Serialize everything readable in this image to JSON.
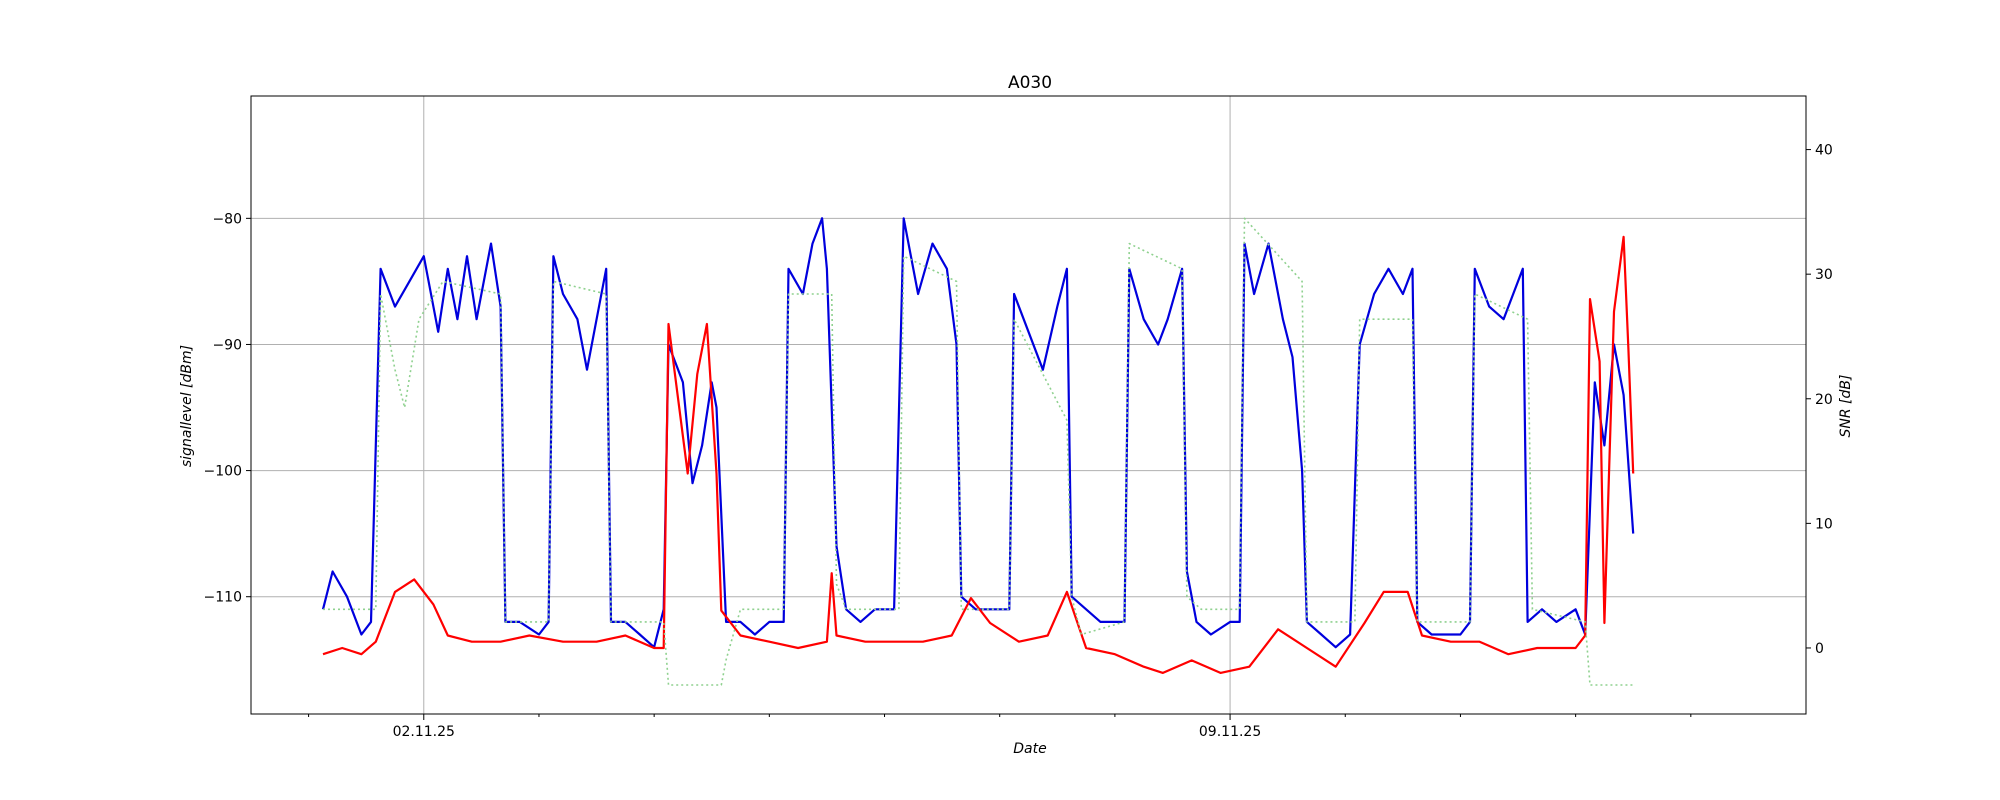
{
  "chart_data": {
    "type": "line",
    "title": "A030",
    "xlabel": "Date",
    "ylabel_left": "signallevel [dBm]",
    "ylabel_right": "SNR [dB]",
    "x_range": [
      "2025-10-31 12:00",
      "2025-11-14 00:00"
    ],
    "ylim_left": [
      -119.3,
      -70.3
    ],
    "ylim_right": [
      -5.3,
      44.3
    ],
    "left_ticks": [
      -80,
      -90,
      -100,
      -110
    ],
    "left_tick_labels": [
      "−80",
      "−90",
      "−100",
      "−110"
    ],
    "right_ticks": [
      40,
      30,
      20,
      10,
      0
    ],
    "right_tick_labels": [
      "40",
      "30",
      "20",
      "10",
      "0"
    ],
    "x_major_ticks": [
      "2025-11-02",
      "2025-11-09"
    ],
    "x_major_tick_labels": [
      "02.11.25",
      "09.11.25"
    ],
    "x_minor_tick_days": [
      "2025-11-01",
      "2025-11-03",
      "2025-11-04",
      "2025-11-05",
      "2025-11-06",
      "2025-11-07",
      "2025-11-08",
      "2025-11-10",
      "2025-11-11",
      "2025-11-12",
      "2025-11-13"
    ],
    "grid": true,
    "series": [
      {
        "axis": "left",
        "color": "#0000dd",
        "style": "solid",
        "points": [
          [
            "2025-11-01 03:00",
            -111
          ],
          [
            "2025-11-01 05:00",
            -108
          ],
          [
            "2025-11-01 08:00",
            -110
          ],
          [
            "2025-11-01 11:00",
            -113
          ],
          [
            "2025-11-01 13:00",
            -112
          ],
          [
            "2025-11-01 15:00",
            -84
          ],
          [
            "2025-11-01 18:00",
            -87
          ],
          [
            "2025-11-01 21:00",
            -85
          ],
          [
            "2025-11-02 00:00",
            -83
          ],
          [
            "2025-11-02 03:00",
            -89
          ],
          [
            "2025-11-02 05:00",
            -84
          ],
          [
            "2025-11-02 07:00",
            -88
          ],
          [
            "2025-11-02 09:00",
            -83
          ],
          [
            "2025-11-02 11:00",
            -88
          ],
          [
            "2025-11-02 14:00",
            -82
          ],
          [
            "2025-11-02 16:00",
            -87
          ],
          [
            "2025-11-02 17:00",
            -112
          ],
          [
            "2025-11-02 20:00",
            -112
          ],
          [
            "2025-11-03 00:00",
            -113
          ],
          [
            "2025-11-03 02:00",
            -112
          ],
          [
            "2025-11-03 03:00",
            -83
          ],
          [
            "2025-11-03 05:00",
            -86
          ],
          [
            "2025-11-03 08:00",
            -88
          ],
          [
            "2025-11-03 10:00",
            -92
          ],
          [
            "2025-11-03 12:00",
            -88
          ],
          [
            "2025-11-03 14:00",
            -84
          ],
          [
            "2025-11-03 15:00",
            -112
          ],
          [
            "2025-11-03 18:00",
            -112
          ],
          [
            "2025-11-03 21:00",
            -113
          ],
          [
            "2025-11-04 00:00",
            -114
          ],
          [
            "2025-11-04 02:00",
            -111
          ],
          [
            "2025-11-04 03:00",
            -90
          ],
          [
            "2025-11-04 06:00",
            -93
          ],
          [
            "2025-11-04 08:00",
            -101
          ],
          [
            "2025-11-04 10:00",
            -98
          ],
          [
            "2025-11-04 12:00",
            -93
          ],
          [
            "2025-11-04 13:00",
            -95
          ],
          [
            "2025-11-04 15:00",
            -112
          ],
          [
            "2025-11-04 18:00",
            -112
          ],
          [
            "2025-11-04 21:00",
            -113
          ],
          [
            "2025-11-05 00:00",
            -112
          ],
          [
            "2025-11-05 03:00",
            -112
          ],
          [
            "2025-11-05 04:00",
            -84
          ],
          [
            "2025-11-05 07:00",
            -86
          ],
          [
            "2025-11-05 09:00",
            -82
          ],
          [
            "2025-11-05 11:00",
            -80
          ],
          [
            "2025-11-05 12:00",
            -84
          ],
          [
            "2025-11-05 14:00",
            -106
          ],
          [
            "2025-11-05 16:00",
            -111
          ],
          [
            "2025-11-05 19:00",
            -112
          ],
          [
            "2025-11-05 22:00",
            -111
          ],
          [
            "2025-11-06 02:00",
            -111
          ],
          [
            "2025-11-06 04:00",
            -80
          ],
          [
            "2025-11-06 07:00",
            -86
          ],
          [
            "2025-11-06 10:00",
            -82
          ],
          [
            "2025-11-06 13:00",
            -84
          ],
          [
            "2025-11-06 15:00",
            -90
          ],
          [
            "2025-11-06 16:00",
            -110
          ],
          [
            "2025-11-06 19:00",
            -111
          ],
          [
            "2025-11-06 22:00",
            -111
          ],
          [
            "2025-11-07 02:00",
            -111
          ],
          [
            "2025-11-07 03:00",
            -86
          ],
          [
            "2025-11-07 06:00",
            -89
          ],
          [
            "2025-11-07 09:00",
            -92
          ],
          [
            "2025-11-07 12:00",
            -87
          ],
          [
            "2025-11-07 14:00",
            -84
          ],
          [
            "2025-11-07 15:00",
            -110
          ],
          [
            "2025-11-07 18:00",
            -111
          ],
          [
            "2025-11-07 21:00",
            -112
          ],
          [
            "2025-11-08 02:00",
            -112
          ],
          [
            "2025-11-08 03:00",
            -84
          ],
          [
            "2025-11-08 06:00",
            -88
          ],
          [
            "2025-11-08 09:00",
            -90
          ],
          [
            "2025-11-08 11:00",
            -88
          ],
          [
            "2025-11-08 14:00",
            -84
          ],
          [
            "2025-11-08 15:00",
            -108
          ],
          [
            "2025-11-08 17:00",
            -112
          ],
          [
            "2025-11-08 20:00",
            -113
          ],
          [
            "2025-11-09 00:00",
            -112
          ],
          [
            "2025-11-09 02:00",
            -112
          ],
          [
            "2025-11-09 03:00",
            -82
          ],
          [
            "2025-11-09 05:00",
            -86
          ],
          [
            "2025-11-09 08:00",
            -82
          ],
          [
            "2025-11-09 11:00",
            -88
          ],
          [
            "2025-11-09 13:00",
            -91
          ],
          [
            "2025-11-09 15:00",
            -100
          ],
          [
            "2025-11-09 16:00",
            -112
          ],
          [
            "2025-11-09 19:00",
            -113
          ],
          [
            "2025-11-09 22:00",
            -114
          ],
          [
            "2025-11-10 01:00",
            -113
          ],
          [
            "2025-11-10 03:00",
            -90
          ],
          [
            "2025-11-10 06:00",
            -86
          ],
          [
            "2025-11-10 09:00",
            -84
          ],
          [
            "2025-11-10 12:00",
            -86
          ],
          [
            "2025-11-10 14:00",
            -84
          ],
          [
            "2025-11-10 15:00",
            -112
          ],
          [
            "2025-11-10 18:00",
            -113
          ],
          [
            "2025-11-10 21:00",
            -113
          ],
          [
            "2025-11-11 00:00",
            -113
          ],
          [
            "2025-11-11 02:00",
            -112
          ],
          [
            "2025-11-11 03:00",
            -84
          ],
          [
            "2025-11-11 06:00",
            -87
          ],
          [
            "2025-11-11 09:00",
            -88
          ],
          [
            "2025-11-11 11:00",
            -86
          ],
          [
            "2025-11-11 13:00",
            -84
          ],
          [
            "2025-11-11 14:00",
            -112
          ],
          [
            "2025-11-11 17:00",
            -111
          ],
          [
            "2025-11-11 20:00",
            -112
          ],
          [
            "2025-11-12 00:00",
            -111
          ],
          [
            "2025-11-12 02:00",
            -113
          ],
          [
            "2025-11-12 04:00",
            -93
          ],
          [
            "2025-11-12 06:00",
            -98
          ],
          [
            "2025-11-12 08:00",
            -90
          ],
          [
            "2025-11-12 10:00",
            -94
          ],
          [
            "2025-11-12 12:00",
            -105
          ]
        ]
      },
      {
        "axis": "right",
        "color": "#ff0000",
        "style": "solid",
        "points": [
          [
            "2025-11-01 03:00",
            -0.5
          ],
          [
            "2025-11-01 07:00",
            0
          ],
          [
            "2025-11-01 11:00",
            -0.5
          ],
          [
            "2025-11-01 14:00",
            0.5
          ],
          [
            "2025-11-01 18:00",
            4.5
          ],
          [
            "2025-11-01 22:00",
            5.5
          ],
          [
            "2025-11-02 02:00",
            3.5
          ],
          [
            "2025-11-02 05:00",
            1
          ],
          [
            "2025-11-02 10:00",
            0.5
          ],
          [
            "2025-11-02 16:00",
            0.5
          ],
          [
            "2025-11-02 22:00",
            1
          ],
          [
            "2025-11-03 05:00",
            0.5
          ],
          [
            "2025-11-03 12:00",
            0.5
          ],
          [
            "2025-11-03 18:00",
            1
          ],
          [
            "2025-11-04 00:00",
            0
          ],
          [
            "2025-11-04 02:00",
            0
          ],
          [
            "2025-11-04 03:00",
            26
          ],
          [
            "2025-11-04 05:00",
            20
          ],
          [
            "2025-11-04 07:00",
            14
          ],
          [
            "2025-11-04 09:00",
            22
          ],
          [
            "2025-11-04 11:00",
            26
          ],
          [
            "2025-11-04 13:00",
            14
          ],
          [
            "2025-11-04 14:00",
            3
          ],
          [
            "2025-11-04 18:00",
            1
          ],
          [
            "2025-11-05 00:00",
            0.5
          ],
          [
            "2025-11-05 06:00",
            0
          ],
          [
            "2025-11-05 12:00",
            0.5
          ],
          [
            "2025-11-05 13:00",
            6
          ],
          [
            "2025-11-05 14:00",
            1
          ],
          [
            "2025-11-05 20:00",
            0.5
          ],
          [
            "2025-11-06 02:00",
            0.5
          ],
          [
            "2025-11-06 08:00",
            0.5
          ],
          [
            "2025-11-06 14:00",
            1
          ],
          [
            "2025-11-06 18:00",
            4
          ],
          [
            "2025-11-06 22:00",
            2
          ],
          [
            "2025-11-07 04:00",
            0.5
          ],
          [
            "2025-11-07 10:00",
            1
          ],
          [
            "2025-11-07 14:00",
            4.5
          ],
          [
            "2025-11-07 18:00",
            0
          ],
          [
            "2025-11-08 00:00",
            -0.5
          ],
          [
            "2025-11-08 06:00",
            -1.5
          ],
          [
            "2025-11-08 10:00",
            -2
          ],
          [
            "2025-11-08 16:00",
            -1
          ],
          [
            "2025-11-08 22:00",
            -2
          ],
          [
            "2025-11-09 04:00",
            -1.5
          ],
          [
            "2025-11-09 10:00",
            1.5
          ],
          [
            "2025-11-09 16:00",
            0
          ],
          [
            "2025-11-09 22:00",
            -1.5
          ],
          [
            "2025-11-10 04:00",
            2
          ],
          [
            "2025-11-10 08:00",
            4.5
          ],
          [
            "2025-11-10 13:00",
            4.5
          ],
          [
            "2025-11-10 16:00",
            1
          ],
          [
            "2025-11-10 22:00",
            0.5
          ],
          [
            "2025-11-11 04:00",
            0.5
          ],
          [
            "2025-11-11 10:00",
            -0.5
          ],
          [
            "2025-11-11 16:00",
            0
          ],
          [
            "2025-11-12 00:00",
            0
          ],
          [
            "2025-11-12 02:00",
            1
          ],
          [
            "2025-11-12 03:00",
            28
          ],
          [
            "2025-11-12 05:00",
            23
          ],
          [
            "2025-11-12 06:00",
            2
          ],
          [
            "2025-11-12 08:00",
            27
          ],
          [
            "2025-11-12 10:00",
            33
          ],
          [
            "2025-11-12 11:00",
            24
          ],
          [
            "2025-11-12 12:00",
            14
          ]
        ]
      },
      {
        "axis": "left",
        "color": "#8fd18f",
        "style": "dotted",
        "points": [
          [
            "2025-11-01 03:00",
            -111
          ],
          [
            "2025-11-01 14:00",
            -111
          ],
          [
            "2025-11-01 15:00",
            -86
          ],
          [
            "2025-11-01 18:00",
            -92
          ],
          [
            "2025-11-01 20:00",
            -95
          ],
          [
            "2025-11-01 23:00",
            -88
          ],
          [
            "2025-11-02 04:00",
            -85
          ],
          [
            "2025-11-02 16:00",
            -86
          ],
          [
            "2025-11-02 17:00",
            -112
          ],
          [
            "2025-11-03 02:00",
            -112
          ],
          [
            "2025-11-03 03:00",
            -85
          ],
          [
            "2025-11-03 14:00",
            -86
          ],
          [
            "2025-11-03 15:00",
            -112
          ],
          [
            "2025-11-04 02:00",
            -112
          ],
          [
            "2025-11-04 03:00",
            -117
          ],
          [
            "2025-11-04 14:00",
            -117
          ],
          [
            "2025-11-04 15:00",
            -115
          ],
          [
            "2025-11-04 18:00",
            -111
          ],
          [
            "2025-11-05 03:00",
            -111
          ],
          [
            "2025-11-05 04:00",
            -86
          ],
          [
            "2025-11-05 13:00",
            -86
          ],
          [
            "2025-11-05 14:00",
            -109
          ],
          [
            "2025-11-05 16:00",
            -111
          ],
          [
            "2025-11-06 03:00",
            -111
          ],
          [
            "2025-11-06 04:00",
            -83
          ],
          [
            "2025-11-06 15:00",
            -85
          ],
          [
            "2025-11-06 16:00",
            -111
          ],
          [
            "2025-11-07 02:00",
            -111
          ],
          [
            "2025-11-07 03:00",
            -88
          ],
          [
            "2025-11-07 14:00",
            -96
          ],
          [
            "2025-11-07 15:00",
            -110
          ],
          [
            "2025-11-07 17:00",
            -113
          ],
          [
            "2025-11-08 02:00",
            -112
          ],
          [
            "2025-11-08 03:00",
            -82
          ],
          [
            "2025-11-08 14:00",
            -84
          ],
          [
            "2025-11-08 15:00",
            -110
          ],
          [
            "2025-11-08 18:00",
            -111
          ],
          [
            "2025-11-09 02:00",
            -111
          ],
          [
            "2025-11-09 03:00",
            -80
          ],
          [
            "2025-11-09 15:00",
            -85
          ],
          [
            "2025-11-09 16:00",
            -112
          ],
          [
            "2025-11-10 02:00",
            -112
          ],
          [
            "2025-11-10 03:00",
            -88
          ],
          [
            "2025-11-10 14:00",
            -88
          ],
          [
            "2025-11-10 15:00",
            -112
          ],
          [
            "2025-11-11 02:00",
            -112
          ],
          [
            "2025-11-11 03:00",
            -86
          ],
          [
            "2025-11-11 14:00",
            -88
          ],
          [
            "2025-11-11 15:00",
            -111
          ],
          [
            "2025-11-12 02:00",
            -112
          ],
          [
            "2025-11-12 03:00",
            -117
          ],
          [
            "2025-11-12 12:00",
            -117
          ]
        ]
      }
    ]
  }
}
